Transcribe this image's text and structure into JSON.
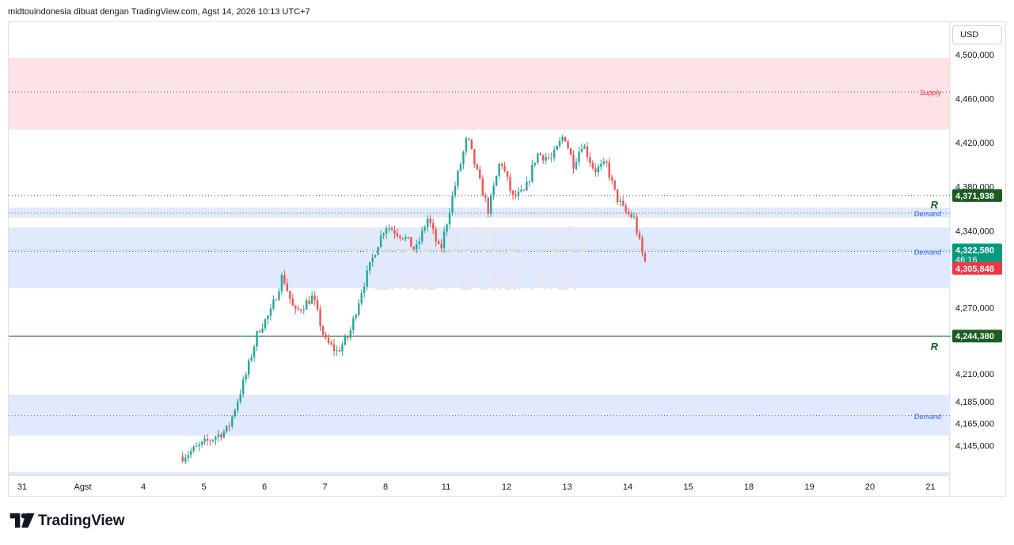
{
  "header": {
    "text": "midtouindonesia dibuat dengan TradingView.com, Agst 14, 2026 10:13 UTC+7"
  },
  "watermark": {
    "symbol": "XAUUSD, 1h",
    "description": "Emas / Dollar A.S."
  },
  "currency_button": {
    "label": "USD"
  },
  "footer": {
    "brand": "TradingView"
  },
  "colors": {
    "up": "#26a69a",
    "down": "#ef5350",
    "supply_zone": "#fde3e6",
    "demand_zone": "#e0e9fd",
    "supply_text": "#f23645",
    "demand_text": "#2962ff",
    "resistance": "#1b5e20",
    "last_price_bg": "#089981",
    "low_price_bg": "#f23645"
  },
  "chart_data": {
    "type": "candlestick",
    "symbol": "XAUUSD",
    "timeframe": "1h",
    "ylim": [
      4137000,
      4510000
    ],
    "yticks": [
      {
        "value": 4500000,
        "label": "4,500,000"
      },
      {
        "value": 4460000,
        "label": "4,460,000"
      },
      {
        "value": 4420000,
        "label": "4,420,000"
      },
      {
        "value": 4380000,
        "label": "4,380,000"
      },
      {
        "value": 4340000,
        "label": "4,340,000"
      },
      {
        "value": 4270000,
        "label": "4,270,000"
      },
      {
        "value": 4210000,
        "label": "4,210,000"
      },
      {
        "value": 4185000,
        "label": "4,185,000"
      },
      {
        "value": 4165000,
        "label": "4,165,000"
      },
      {
        "value": 4145000,
        "label": "4,145,000"
      }
    ],
    "xticks": [
      {
        "day": -4,
        "label": "31"
      },
      {
        "day": -3,
        "label": "Agst"
      },
      {
        "day": -2,
        "label": "4"
      },
      {
        "day": -1,
        "label": "5"
      },
      {
        "day": 0,
        "label": "6"
      },
      {
        "day": 1,
        "label": "7"
      },
      {
        "day": 2,
        "label": "8"
      },
      {
        "day": 3,
        "label": "11"
      },
      {
        "day": 4,
        "label": "12"
      },
      {
        "day": 5,
        "label": "13"
      },
      {
        "day": 6,
        "label": "14"
      },
      {
        "day": 7,
        "label": "15"
      },
      {
        "day": 8,
        "label": "18"
      },
      {
        "day": 9,
        "label": "19"
      },
      {
        "day": 10,
        "label": "20"
      },
      {
        "day": 11,
        "label": "21"
      }
    ],
    "zones": [
      {
        "kind": "supply",
        "label": "Supply",
        "top": 4497000,
        "bottom": 4432000,
        "mid": 4466000
      },
      {
        "kind": "demand",
        "label": "Demand",
        "top": 4361000,
        "bottom": 4352000,
        "mid": 4356000
      },
      {
        "kind": "demand",
        "label": "Demand",
        "top": 4343000,
        "bottom": 4288000,
        "mid": 4321000
      },
      {
        "kind": "demand",
        "label": "Demand",
        "top": 4191000,
        "bottom": 4154000,
        "mid": 4172000
      }
    ],
    "lines": [
      {
        "kind": "dotted",
        "value": 4371938,
        "label": "R"
      },
      {
        "kind": "solid",
        "value": 4244380,
        "label": "R"
      }
    ],
    "price_labels": [
      {
        "value": 4371938,
        "text": "4,371,938",
        "style": "resistance"
      },
      {
        "value": 4322580,
        "text": "4,322,580",
        "sub": "46:16",
        "style": "last"
      },
      {
        "value": 4305848,
        "text": "4,305,848",
        "style": "low"
      },
      {
        "value": 4244380,
        "text": "4,244,380",
        "style": "resistance"
      }
    ],
    "path": [
      [
        -1.35,
        4135000
      ],
      [
        -0.6,
        4160000
      ],
      [
        -0.3,
        4210000
      ],
      [
        -0.1,
        4250000
      ],
      [
        0.1,
        4265000
      ],
      [
        0.3,
        4300000
      ],
      [
        0.5,
        4265000
      ],
      [
        0.8,
        4280000
      ],
      [
        1.0,
        4240000
      ],
      [
        1.2,
        4230000
      ],
      [
        1.4,
        4245000
      ],
      [
        1.6,
        4285000
      ],
      [
        1.85,
        4325000
      ],
      [
        2.0,
        4345000
      ],
      [
        2.3,
        4335000
      ],
      [
        2.5,
        4322000
      ],
      [
        2.7,
        4352000
      ],
      [
        2.9,
        4320000
      ],
      [
        3.1,
        4370000
      ],
      [
        3.35,
        4425000
      ],
      [
        3.55,
        4385000
      ],
      [
        3.7,
        4358000
      ],
      [
        3.9,
        4405000
      ],
      [
        4.1,
        4370000
      ],
      [
        4.3,
        4375000
      ],
      [
        4.5,
        4410000
      ],
      [
        4.75,
        4405000
      ],
      [
        4.95,
        4428000
      ],
      [
        5.1,
        4400000
      ],
      [
        5.25,
        4420000
      ],
      [
        5.45,
        4395000
      ],
      [
        5.65,
        4400000
      ],
      [
        5.8,
        4372000
      ],
      [
        5.95,
        4357000
      ],
      [
        6.1,
        4352000
      ],
      [
        6.2,
        4328000
      ],
      [
        6.28,
        4310000
      ],
      [
        6.33,
        4322580
      ]
    ],
    "last": 4322580,
    "period_low": 4305848,
    "countdown": "46:16"
  }
}
